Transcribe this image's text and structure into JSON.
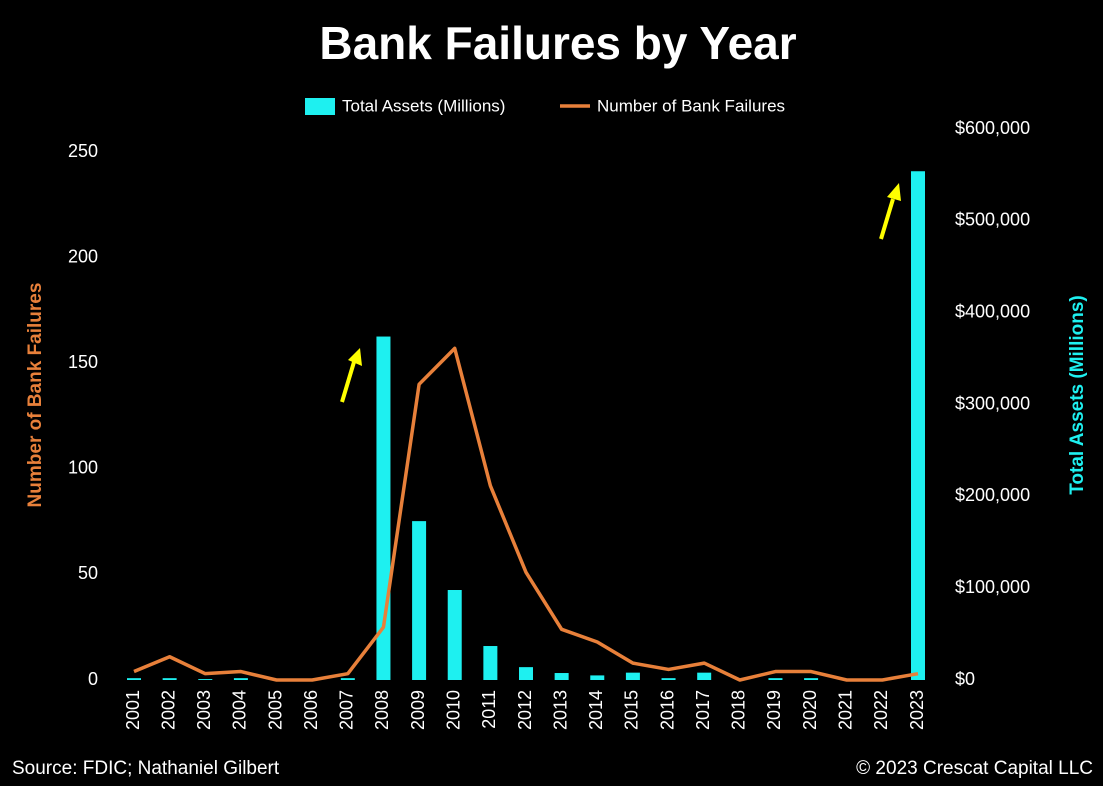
{
  "chart_data": {
    "type": "combo",
    "title": "Bank Failures by Year",
    "categories": [
      "2001",
      "2002",
      "2003",
      "2004",
      "2005",
      "2006",
      "2007",
      "2008",
      "2009",
      "2010",
      "2011",
      "2012",
      "2013",
      "2014",
      "2015",
      "2016",
      "2017",
      "2018",
      "2019",
      "2020",
      "2021",
      "2022",
      "2023"
    ],
    "series": [
      {
        "name": "Total Assets (Millions)",
        "type": "bar",
        "axis": "y2",
        "color": "#1ef0f0",
        "values": [
          2000,
          2000,
          1000,
          2000,
          0,
          0,
          2000,
          374000,
          173000,
          98000,
          37000,
          14000,
          7600,
          5000,
          8000,
          2000,
          8000,
          0,
          2000,
          2000,
          0,
          0,
          554000
        ]
      },
      {
        "name": "Number of Bank Failures",
        "type": "line",
        "axis": "y",
        "color": "#e8803a",
        "values": [
          4,
          11,
          3,
          4,
          0,
          0,
          3,
          25,
          140,
          157,
          92,
          51,
          24,
          18,
          8,
          5,
          8,
          0,
          4,
          4,
          0,
          0,
          3
        ]
      }
    ],
    "ylabel": "Number of Bank Failures",
    "y2label": "Total Assets (Millions)",
    "ylim": [
      0,
      250
    ],
    "yticks": [
      0,
      50,
      100,
      150,
      200,
      250
    ],
    "y2lim": [
      0,
      600000
    ],
    "y2ticks": [
      {
        "value": 0,
        "label": "$0"
      },
      {
        "value": 100000,
        "label": "$100,000"
      },
      {
        "value": 200000,
        "label": "$200,000"
      },
      {
        "value": 300000,
        "label": "$300,000"
      },
      {
        "value": 400000,
        "label": "$400,000"
      },
      {
        "value": 500000,
        "label": "$500,000"
      },
      {
        "value": 600000,
        "label": "$600,000"
      }
    ],
    "source": "Source: FDIC; Nathaniel Gilbert",
    "copyright": "© 2023 Crescat Capital LLC"
  }
}
